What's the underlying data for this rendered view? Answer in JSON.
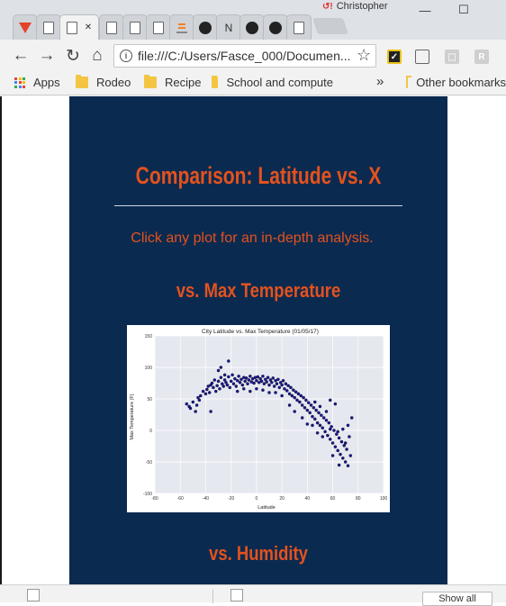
{
  "window": {
    "profile_name": "Christopher",
    "minimize_glyph": "—",
    "maximize_glyph": "☐"
  },
  "tabs": [
    {
      "icon": "gitlab-icon",
      "color": "#e24329"
    },
    {
      "icon": "document-icon"
    },
    {
      "icon": "document-icon",
      "active": true,
      "close_glyph": "✕"
    },
    {
      "icon": "document-icon"
    },
    {
      "icon": "document-icon"
    },
    {
      "icon": "document-icon"
    },
    {
      "icon": "stackoverflow-icon",
      "color": "#f48024"
    },
    {
      "icon": "github-icon"
    },
    {
      "icon": "notion-icon",
      "label": "N"
    },
    {
      "icon": "github-icon"
    },
    {
      "icon": "github-icon"
    },
    {
      "icon": "document-icon"
    }
  ],
  "toolbar": {
    "back_glyph": "←",
    "forward_glyph": "→",
    "reload_glyph": "↻",
    "home_glyph": "⌂",
    "url": "file:///C:/Users/Fasce_000/Documen...",
    "star_glyph": "☆"
  },
  "bookmarks": {
    "apps_label": "Apps",
    "items": [
      "Rodeo",
      "Recipe",
      "School and compute"
    ],
    "overflow_glyph": "»",
    "other_label": "Other bookmarks"
  },
  "page": {
    "title": "Comparison: Latitude vs. X",
    "subtitle": "Click any plot for an in-depth analysis.",
    "section1": "vs. Max Temperature",
    "section2": "vs. Humidity"
  },
  "colors": {
    "panel_bg": "#0b2a50",
    "accent": "#e4521d",
    "point": "#1a1a8c",
    "plot_bg": "#e6e8f0"
  },
  "chart_data": {
    "type": "scatter",
    "title": "City Latitude vs. Max Temperature (01/05/17)",
    "xlabel": "Latitude",
    "ylabel": "Max Temperature (F)",
    "xlim": [
      -80,
      100
    ],
    "ylim": [
      -100,
      150
    ],
    "xticks": [
      -80,
      -60,
      -40,
      -20,
      0,
      20,
      40,
      60,
      80,
      100
    ],
    "yticks": [
      150,
      100,
      50,
      0,
      -50,
      -100
    ],
    "grid": true,
    "points": [
      [
        -55,
        42
      ],
      [
        -53,
        38
      ],
      [
        -50,
        45
      ],
      [
        -47,
        40
      ],
      [
        -46,
        52
      ],
      [
        -45,
        48
      ],
      [
        -44,
        55
      ],
      [
        -42,
        62
      ],
      [
        -40,
        58
      ],
      [
        -39,
        65
      ],
      [
        -38,
        70
      ],
      [
        -37,
        60
      ],
      [
        -36,
        72
      ],
      [
        -35,
        75
      ],
      [
        -34,
        68
      ],
      [
        -33,
        80
      ],
      [
        -32,
        62
      ],
      [
        -31,
        71
      ],
      [
        -30,
        78
      ],
      [
        -29,
        66
      ],
      [
        -28,
        84
      ],
      [
        -27,
        74
      ],
      [
        -26,
        70
      ],
      [
        -25,
        80
      ],
      [
        -24,
        76
      ],
      [
        -23,
        72
      ],
      [
        -22,
        85
      ],
      [
        -21,
        68
      ],
      [
        -20,
        78
      ],
      [
        -19,
        88
      ],
      [
        -18,
        74
      ],
      [
        -17,
        82
      ],
      [
        -16,
        70
      ],
      [
        -15,
        79
      ],
      [
        -14,
        86
      ],
      [
        -13,
        76
      ],
      [
        -12,
        81
      ],
      [
        -11,
        72
      ],
      [
        -10,
        84
      ],
      [
        -9,
        78
      ],
      [
        -8,
        83
      ],
      [
        -7,
        74
      ],
      [
        -6,
        80
      ],
      [
        -5,
        86
      ],
      [
        -4,
        77
      ],
      [
        -3,
        82
      ],
      [
        -2,
        75
      ],
      [
        -1,
        84
      ],
      [
        0,
        79
      ],
      [
        1,
        85
      ],
      [
        2,
        76
      ],
      [
        3,
        82
      ],
      [
        4,
        78
      ],
      [
        5,
        86
      ],
      [
        6,
        74
      ],
      [
        7,
        81
      ],
      [
        8,
        77
      ],
      [
        9,
        84
      ],
      [
        10,
        72
      ],
      [
        11,
        80
      ],
      [
        12,
        76
      ],
      [
        13,
        83
      ],
      [
        14,
        70
      ],
      [
        15,
        79
      ],
      [
        16,
        74
      ],
      [
        17,
        81
      ],
      [
        18,
        68
      ],
      [
        19,
        76
      ],
      [
        20,
        72
      ],
      [
        21,
        79
      ],
      [
        22,
        66
      ],
      [
        23,
        74
      ],
      [
        24,
        63
      ],
      [
        25,
        71
      ],
      [
        26,
        58
      ],
      [
        27,
        68
      ],
      [
        28,
        55
      ],
      [
        29,
        64
      ],
      [
        30,
        52
      ],
      [
        31,
        61
      ],
      [
        32,
        48
      ],
      [
        33,
        58
      ],
      [
        34,
        45
      ],
      [
        35,
        55
      ],
      [
        36,
        40
      ],
      [
        37,
        52
      ],
      [
        38,
        36
      ],
      [
        39,
        48
      ],
      [
        40,
        32
      ],
      [
        41,
        44
      ],
      [
        42,
        28
      ],
      [
        43,
        40
      ],
      [
        44,
        22
      ],
      [
        45,
        36
      ],
      [
        46,
        18
      ],
      [
        47,
        32
      ],
      [
        48,
        12
      ],
      [
        49,
        28
      ],
      [
        50,
        8
      ],
      [
        51,
        24
      ],
      [
        52,
        4
      ],
      [
        53,
        20
      ],
      [
        54,
        -2
      ],
      [
        55,
        16
      ],
      [
        56,
        -8
      ],
      [
        57,
        12
      ],
      [
        58,
        -14
      ],
      [
        59,
        6
      ],
      [
        60,
        -20
      ],
      [
        61,
        0
      ],
      [
        62,
        -26
      ],
      [
        63,
        -6
      ],
      [
        64,
        -32
      ],
      [
        65,
        -12
      ],
      [
        66,
        -38
      ],
      [
        67,
        -18
      ],
      [
        68,
        -44
      ],
      [
        69,
        -24
      ],
      [
        70,
        -50
      ],
      [
        71,
        -30
      ],
      [
        72,
        -56
      ],
      [
        73,
        -10
      ],
      [
        74,
        -40
      ],
      [
        75,
        20
      ],
      [
        62,
        42
      ],
      [
        58,
        48
      ],
      [
        55,
        30
      ],
      [
        50,
        38
      ],
      [
        46,
        45
      ],
      [
        44,
        8
      ],
      [
        40,
        10
      ],
      [
        36,
        20
      ],
      [
        30,
        30
      ],
      [
        26,
        40
      ],
      [
        20,
        55
      ],
      [
        15,
        60
      ],
      [
        -30,
        95
      ],
      [
        -28,
        100
      ],
      [
        -25,
        88
      ],
      [
        -22,
        110
      ],
      [
        -48,
        30
      ],
      [
        -52,
        35
      ],
      [
        -36,
        30
      ],
      [
        -15,
        62
      ],
      [
        -10,
        66
      ],
      [
        -5,
        62
      ],
      [
        0,
        66
      ],
      [
        5,
        64
      ],
      [
        10,
        60
      ],
      [
        60,
        -40
      ],
      [
        65,
        -55
      ],
      [
        70,
        -20
      ],
      [
        72,
        8
      ],
      [
        68,
        2
      ],
      [
        64,
        -2
      ],
      [
        58,
        2
      ],
      [
        52,
        -10
      ],
      [
        48,
        -4
      ]
    ]
  },
  "downloads": {
    "show_all_label": "Show all"
  }
}
